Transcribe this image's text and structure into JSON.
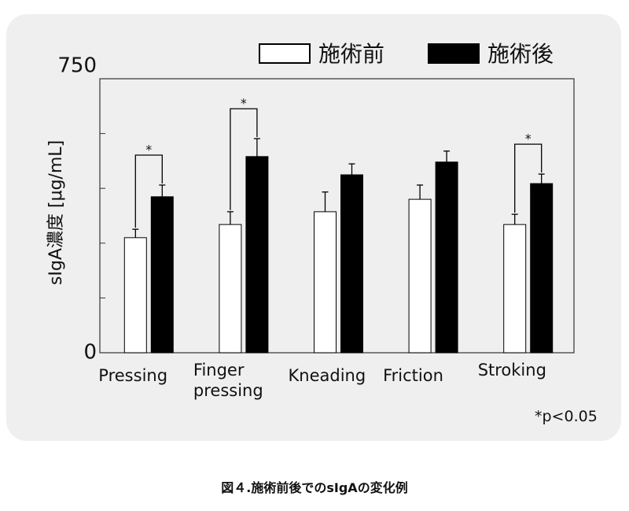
{
  "chart_data": {
    "type": "bar",
    "y_label": "sIgA濃度 [μg/mL]",
    "categories": [
      "Pressing",
      "Finger\npressing",
      "Kneading",
      "Friction",
      "Stroking"
    ],
    "series": [
      {
        "name": "施術前",
        "color": "#ffffff",
        "values": [
          315,
          351,
          386,
          420,
          351
        ],
        "errors": [
          23,
          35,
          54,
          39,
          28
        ]
      },
      {
        "name": "施術後",
        "color": "#000000",
        "values": [
          427,
          537,
          487,
          522,
          463
        ],
        "errors": [
          32,
          49,
          30,
          30,
          26
        ]
      }
    ],
    "ylim": [
      0,
      750
    ],
    "yticks": [
      0,
      750
    ],
    "minor_yticks": [
      150,
      300,
      450,
      600
    ],
    "significant": [
      true,
      true,
      false,
      false,
      true
    ],
    "significance_label": "*",
    "annotation": "*p<0.05",
    "caption": "図４.施術前後でのsIgAの変化例"
  }
}
